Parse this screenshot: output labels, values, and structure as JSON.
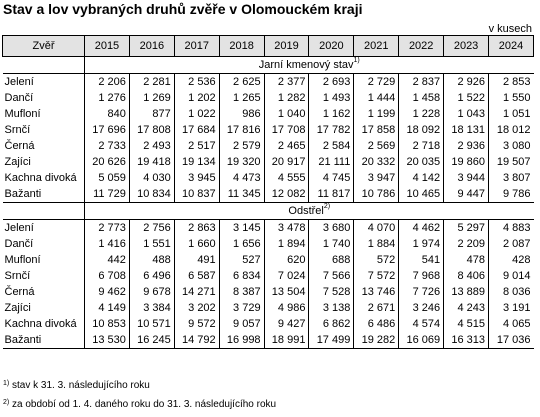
{
  "title": "Stav a lov vybraných druhů zvěře v Olomouckém kraji",
  "unit": "v kusech",
  "header": {
    "species": "Zvěř",
    "years": [
      "2015",
      "2016",
      "2017",
      "2018",
      "2019",
      "2020",
      "2021",
      "2022",
      "2023",
      "2024"
    ]
  },
  "sections": [
    {
      "label": "Jarní kmenový stav",
      "note": "1)",
      "rows": [
        {
          "name": "Jelení",
          "values": [
            "2 206",
            "2 281",
            "2 536",
            "2 625",
            "2 377",
            "2 693",
            "2 729",
            "2 837",
            "2 926",
            "2 853"
          ]
        },
        {
          "name": "Dančí",
          "values": [
            "1 276",
            "1 269",
            "1 202",
            "1 265",
            "1 282",
            "1 493",
            "1 444",
            "1 458",
            "1 522",
            "1 550"
          ]
        },
        {
          "name": "Mufloní",
          "values": [
            "840",
            "877",
            "1 022",
            "986",
            "1 040",
            "1 162",
            "1 199",
            "1 228",
            "1 043",
            "1 051"
          ]
        },
        {
          "name": "Srnčí",
          "values": [
            "17 696",
            "17 808",
            "17 684",
            "17 816",
            "17 708",
            "17 782",
            "17 858",
            "18 092",
            "18 131",
            "18 012"
          ]
        },
        {
          "name": "Černá",
          "values": [
            "2 733",
            "2 493",
            "2 517",
            "2 579",
            "2 465",
            "2 584",
            "2 569",
            "2 718",
            "2 936",
            "3 080"
          ]
        },
        {
          "name": "Zajíci",
          "values": [
            "20 626",
            "19 418",
            "19 134",
            "19 320",
            "20 917",
            "21 111",
            "20 332",
            "20 035",
            "19 860",
            "19 507"
          ]
        },
        {
          "name": "Kachna divoká",
          "values": [
            "5 059",
            "4 030",
            "3 945",
            "4 473",
            "4 555",
            "4 745",
            "3 947",
            "4 142",
            "3 944",
            "3 807"
          ]
        },
        {
          "name": "Bažanti",
          "values": [
            "11 729",
            "10 834",
            "10 837",
            "11 345",
            "12 082",
            "11 817",
            "10 786",
            "10 465",
            "9 447",
            "9 786"
          ]
        }
      ]
    },
    {
      "label": "Odstřel",
      "note": "2)",
      "rows": [
        {
          "name": "Jelení",
          "values": [
            "2 773",
            "2 756",
            "2 863",
            "3 145",
            "3 478",
            "3 680",
            "4 070",
            "4 462",
            "5 297",
            "4 883"
          ]
        },
        {
          "name": "Dančí",
          "values": [
            "1 416",
            "1 551",
            "1 660",
            "1 656",
            "1 894",
            "1 740",
            "1 884",
            "1 974",
            "2 209",
            "2 087"
          ]
        },
        {
          "name": "Mufloní",
          "values": [
            "442",
            "488",
            "491",
            "527",
            "620",
            "688",
            "572",
            "541",
            "478",
            "428"
          ]
        },
        {
          "name": "Srnčí",
          "values": [
            "6 708",
            "6 496",
            "6 587",
            "6 834",
            "7 024",
            "7 566",
            "7 572",
            "7 968",
            "8 406",
            "9 014"
          ]
        },
        {
          "name": "Černá",
          "values": [
            "9 462",
            "9 678",
            "14 271",
            "8 387",
            "13 504",
            "7 528",
            "13 746",
            "7 726",
            "13 889",
            "8 036"
          ]
        },
        {
          "name": "Zajíci",
          "values": [
            "4 149",
            "3 384",
            "3 202",
            "3 729",
            "4 986",
            "3 138",
            "2 671",
            "3 246",
            "4 243",
            "3 191"
          ]
        },
        {
          "name": "Kachna divoká",
          "values": [
            "10 853",
            "10 571",
            "9 572",
            "9 057",
            "9 427",
            "6 862",
            "6 486",
            "4 574",
            "4 515",
            "4 065"
          ]
        },
        {
          "name": "Bažanti",
          "values": [
            "13 530",
            "16 245",
            "14 792",
            "16 998",
            "18 991",
            "17 499",
            "19 282",
            "16 069",
            "16 313",
            "17 036"
          ]
        }
      ]
    }
  ],
  "footnotes": [
    {
      "mark": "1)",
      "text": "stav k 31. 3. následujícího roku"
    },
    {
      "mark": "2)",
      "text": "za období od 1. 4. daného roku do 31. 3. následujícího roku"
    }
  ]
}
